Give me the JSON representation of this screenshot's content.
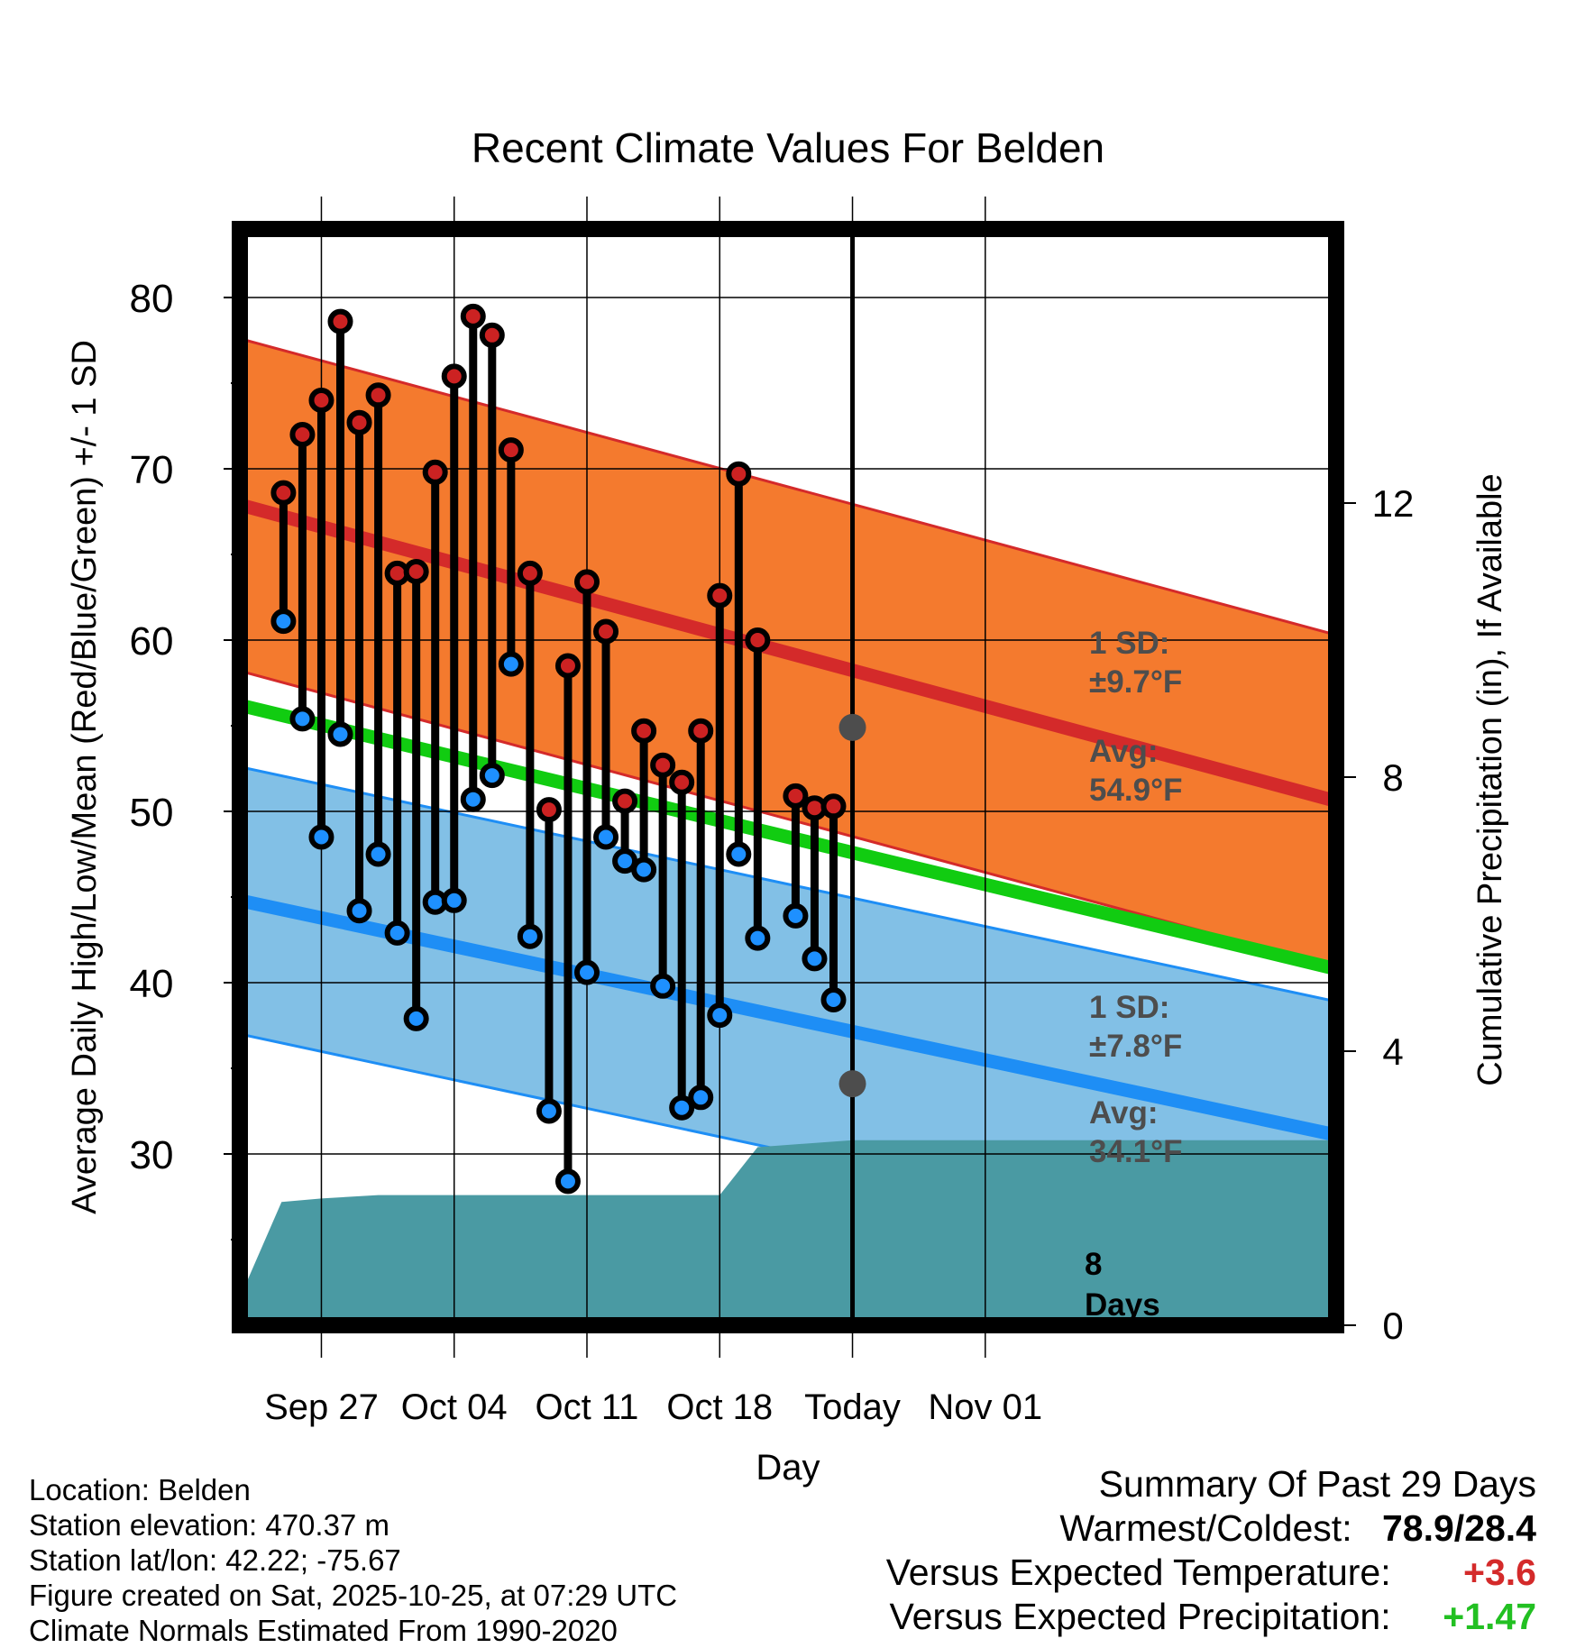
{
  "chart_data": {
    "type": "line",
    "title": "Recent Climate Values For Belden",
    "xlabel": "Day",
    "ylabel": "Average Daily High/Low/Mean (Red/Blue/Green) +/- 1 SD",
    "y2label": "Cumulative Precipitation (in), If Available",
    "ylim": [
      20,
      84
    ],
    "y2lim": [
      0,
      16
    ],
    "yticks": [
      30,
      40,
      50,
      60,
      70,
      80
    ],
    "y2ticks": [
      0,
      4,
      8,
      12
    ],
    "xlim": [
      -4.3,
      53.5
    ],
    "x_ticks": [
      {
        "day": 0,
        "label": "Sep 27"
      },
      {
        "day": 7,
        "label": "Oct 04"
      },
      {
        "day": 14,
        "label": "Oct 11"
      },
      {
        "day": 21,
        "label": "Oct 18"
      },
      {
        "day": 28,
        "label": "Today"
      },
      {
        "day": 35,
        "label": "Nov 01"
      }
    ],
    "today_day": 28,
    "normals": {
      "high_mean": {
        "start": 67.9,
        "end": 50.6
      },
      "high_sd": 9.7,
      "mean": {
        "start": 56.2,
        "end": 40.8
      },
      "low_mean": {
        "start": 44.8,
        "end": 31.1
      },
      "low_sd": 7.8
    },
    "observations": {
      "days": [
        -2,
        -1,
        0,
        1,
        2,
        3,
        4,
        5,
        6,
        7,
        8,
        9,
        10,
        11,
        12,
        13,
        14,
        15,
        16,
        17,
        18,
        19,
        20,
        21,
        22,
        23,
        25,
        26,
        27
      ],
      "highs": [
        68.6,
        72.0,
        74.0,
        78.6,
        72.7,
        74.3,
        63.9,
        64.0,
        69.8,
        75.4,
        78.9,
        77.8,
        71.1,
        63.9,
        50.1,
        58.5,
        63.4,
        60.5,
        50.6,
        54.7,
        52.7,
        51.7,
        54.7,
        62.6,
        69.7,
        60.0,
        50.9,
        50.2,
        50.3
      ],
      "lows": [
        61.1,
        55.4,
        48.5,
        54.5,
        44.2,
        47.5,
        42.9,
        37.9,
        44.7,
        44.8,
        50.7,
        52.1,
        58.6,
        42.7,
        32.5,
        28.4,
        40.6,
        48.5,
        47.1,
        46.6,
        39.8,
        32.7,
        33.3,
        38.1,
        47.5,
        42.6,
        43.9,
        41.4,
        39.0
      ]
    },
    "precipitation": {
      "days": [
        -4.3,
        -2.1,
        0,
        3,
        21,
        23,
        28,
        53.5
      ],
      "values": [
        0.4,
        1.8,
        1.85,
        1.9,
        1.9,
        2.6,
        2.7,
        2.7
      ]
    },
    "annotations": {
      "high_sd": "1 SD:",
      "high_sd_value": "±9.7°F",
      "high_avg": "Avg:",
      "high_avg_value": "54.9°F",
      "high_avg_marker": 54.9,
      "low_sd": "1 SD:",
      "low_sd_value": "±7.8°F",
      "low_avg": "Avg:",
      "low_avg_value": "34.1°F",
      "low_avg_marker": 34.1,
      "days_count": "8",
      "days_word": "Days"
    },
    "colors": {
      "high_band": "#f47a2e",
      "high_line": "#d42a2a",
      "mean_line": "#11cc11",
      "low_band": "#82c0e6",
      "low_line": "#1e8ef5",
      "precip": "#4a9aa3",
      "high_dot": "#cc2222",
      "low_dot": "#1e90ff",
      "annotation": "#4d4d4d"
    }
  },
  "info": {
    "location": "Location: Belden",
    "elevation": "Station elevation: 470.37 m",
    "latlon": "Station lat/lon: 42.22; -75.67",
    "created": "Figure created on Sat, 2025-10-25, at 07:29 UTC",
    "normals": "Climate Normals Estimated From 1990-2020"
  },
  "summary": {
    "title": "Summary Of Past 29 Days",
    "warm_cold_label": "Warmest/Coldest:",
    "warm_cold_value": "78.9/28.4",
    "temp_label": "Versus Expected Temperature:",
    "temp_value": "+3.6",
    "precip_label": "Versus Expected Precipitation:",
    "precip_value": "+1.47"
  }
}
